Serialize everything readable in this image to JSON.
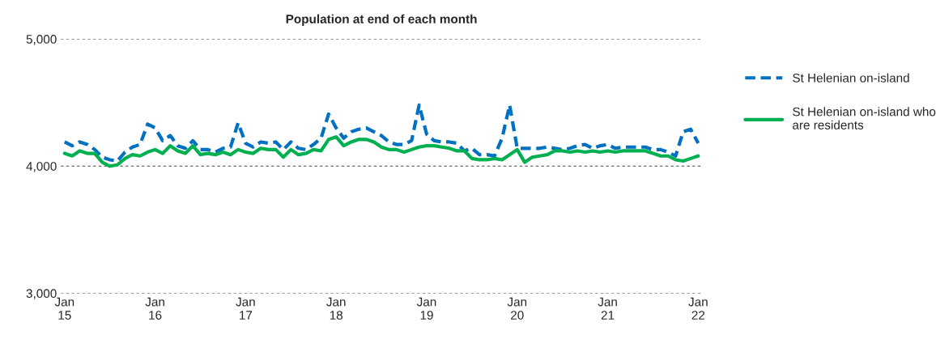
{
  "chart_data": {
    "type": "line",
    "title": "Population at end of each month",
    "categories": [
      "Jan\n15",
      null,
      null,
      null,
      null,
      null,
      null,
      null,
      null,
      null,
      null,
      null,
      "Jan\n16",
      null,
      null,
      null,
      null,
      null,
      null,
      null,
      null,
      null,
      null,
      null,
      "Jan\n17",
      null,
      null,
      null,
      null,
      null,
      null,
      null,
      null,
      null,
      null,
      null,
      "Jan\n18",
      null,
      null,
      null,
      null,
      null,
      null,
      null,
      null,
      null,
      null,
      null,
      "Jan\n19",
      null,
      null,
      null,
      null,
      null,
      null,
      null,
      null,
      null,
      null,
      null,
      "Jan\n20",
      null,
      null,
      null,
      null,
      null,
      null,
      null,
      null,
      null,
      null,
      null,
      "Jan\n21",
      null,
      null,
      null,
      null,
      null,
      null,
      null,
      null,
      null,
      null,
      null,
      "Jan\n22"
    ],
    "series": [
      {
        "name": "St Helenian on-island",
        "color": "#0070c0",
        "line_style": "dashed",
        "values": [
          4190,
          4160,
          4190,
          4170,
          4130,
          4070,
          4050,
          4040,
          4110,
          4150,
          4170,
          4330,
          4300,
          4200,
          4240,
          4160,
          4140,
          4200,
          4130,
          4130,
          4110,
          4140,
          4150,
          4340,
          4180,
          4150,
          4190,
          4180,
          4190,
          4130,
          4190,
          4140,
          4130,
          4170,
          4220,
          4410,
          4300,
          4220,
          4270,
          4290,
          4300,
          4270,
          4240,
          4190,
          4170,
          4170,
          4200,
          4480,
          4250,
          4200,
          4190,
          4190,
          4180,
          4120,
          4140,
          4090,
          4090,
          4080,
          4220,
          4480,
          4140,
          4140,
          4140,
          4140,
          4150,
          4140,
          4130,
          4140,
          4160,
          4170,
          4140,
          4160,
          4170,
          4140,
          4150,
          4150,
          4150,
          4150,
          4130,
          4130,
          4110,
          4080,
          4270,
          4290,
          4180
        ]
      },
      {
        "name": "St Helenian on-island who are residents",
        "color": "#00b050",
        "line_style": "solid",
        "values": [
          4100,
          4080,
          4120,
          4100,
          4100,
          4030,
          4000,
          4010,
          4060,
          4090,
          4080,
          4110,
          4130,
          4100,
          4160,
          4120,
          4100,
          4160,
          4090,
          4100,
          4090,
          4110,
          4090,
          4130,
          4110,
          4100,
          4140,
          4130,
          4130,
          4070,
          4130,
          4090,
          4100,
          4130,
          4120,
          4210,
          4230,
          4160,
          4190,
          4210,
          4210,
          4190,
          4150,
          4130,
          4130,
          4110,
          4130,
          4150,
          4160,
          4160,
          4150,
          4140,
          4120,
          4120,
          4060,
          4050,
          4050,
          4060,
          4050,
          4090,
          4130,
          4030,
          4070,
          4080,
          4090,
          4120,
          4120,
          4110,
          4120,
          4110,
          4120,
          4110,
          4120,
          4110,
          4120,
          4120,
          4120,
          4120,
          4100,
          4080,
          4080,
          4050,
          4040,
          4060,
          4080
        ]
      }
    ],
    "ylim": [
      3000,
      5000
    ],
    "yticks": [
      {
        "value": 3000,
        "label": "3,000"
      },
      {
        "value": 4000,
        "label": "4,000"
      },
      {
        "value": 5000,
        "label": "5,000"
      }
    ],
    "grid": "y",
    "legend": "right"
  }
}
